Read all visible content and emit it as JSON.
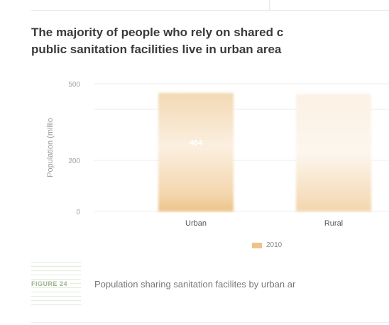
{
  "title": {
    "line1": "The majority of people who rely on shared c",
    "line2": "public sanitation facilities live in urban area"
  },
  "figure": {
    "label": "FIGURE 24",
    "caption": "Population sharing sanitation facilites by urban ar"
  },
  "colors": {
    "bar": "#ecc48a",
    "bar_light": "#f6e2c6",
    "value_label": "#ffffff"
  },
  "chart_data": {
    "type": "bar",
    "categories": [
      "Urban",
      "Rural"
    ],
    "series": [
      {
        "name": "2010",
        "values": [
          464,
          460
        ]
      }
    ],
    "data_labels": [
      "464",
      ""
    ],
    "ylabel": "Population (millio",
    "yticks": [
      {
        "value": 0,
        "label": "0"
      },
      {
        "value": 200,
        "label": "200"
      },
      {
        "value": 400,
        "label": ""
      },
      {
        "value": 500,
        "label": "500"
      }
    ],
    "ylim": [
      0,
      500
    ],
    "grid": true,
    "legend": "bottom-center"
  }
}
